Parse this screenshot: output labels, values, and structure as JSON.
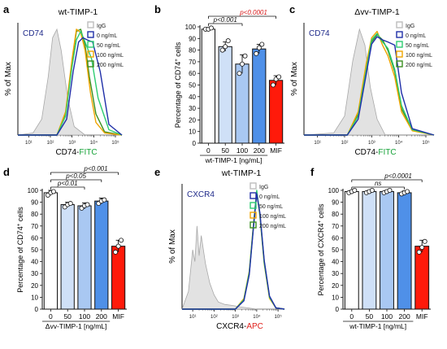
{
  "colors": {
    "igg": "#bdbdbd",
    "dose0": "#1f2fa8",
    "dose50": "#2ecc71",
    "dose100": "#f0a500",
    "dose200": "#3a8f1f",
    "bar0": "#ffffff",
    "bar50": "#cfe0f7",
    "bar100": "#a9c8f2",
    "bar200": "#4f90e8",
    "barMIF": "#ff1a0a",
    "panelLabel": "#1f2a8a",
    "fitc": "#18a33a",
    "apc": "#e0201b",
    "sigRed": "#d61a1a"
  },
  "panels": [
    {
      "letter": "a"
    },
    {
      "letter": "b"
    },
    {
      "letter": "c"
    },
    {
      "letter": "d"
    },
    {
      "letter": "e"
    },
    {
      "letter": "f"
    }
  ],
  "chart_data": [
    {
      "panel": "a",
      "type": "line",
      "title": "wt-TIMP-1",
      "marker_label": "CD74",
      "ylabel": "% of Max",
      "xlabel_main": "CD74-",
      "xlabel_color": "FITC",
      "ticks": [
        "10¹",
        "10²",
        "10³",
        "10⁴",
        "10⁵"
      ],
      "legend": [
        {
          "label": "IgG",
          "color": "#bdbdbd"
        },
        {
          "label": "0 ng/mL",
          "color": "#1f2fa8"
        },
        {
          "label": "50 ng/mL",
          "color": "#2ecc71"
        },
        {
          "label": "100 ng/mL",
          "color": "#f0a500"
        },
        {
          "label": "200 ng/mL",
          "color": "#3a8f1f"
        }
      ],
      "log_x_range": [
        0.5,
        5.3
      ],
      "series": [
        {
          "color": "#bdbdbd",
          "fill": true,
          "x": [
            0.5,
            1.2,
            1.6,
            1.9,
            2.1,
            2.3,
            2.5,
            2.8,
            3.1,
            3.6,
            5.3
          ],
          "y": [
            0,
            2,
            15,
            55,
            92,
            100,
            80,
            35,
            8,
            0,
            0
          ]
        },
        {
          "color": "#3a8f1f",
          "x": [
            0.5,
            2.3,
            2.7,
            3.0,
            3.2,
            3.4,
            3.6,
            3.8,
            4.1,
            4.5,
            5.3
          ],
          "y": [
            0,
            0,
            20,
            70,
            98,
            100,
            85,
            55,
            20,
            3,
            0
          ]
        },
        {
          "color": "#f0a500",
          "x": [
            0.5,
            2.3,
            2.7,
            3.0,
            3.2,
            3.4,
            3.6,
            3.85,
            4.1,
            4.5,
            5.3
          ],
          "y": [
            0,
            0,
            22,
            72,
            100,
            97,
            80,
            40,
            12,
            2,
            0
          ]
        },
        {
          "color": "#2ecc71",
          "x": [
            0.5,
            2.3,
            2.7,
            3.0,
            3.2,
            3.4,
            3.6,
            3.9,
            4.2,
            4.7,
            5.3
          ],
          "y": [
            0,
            0,
            18,
            65,
            90,
            98,
            88,
            72,
            35,
            5,
            0
          ]
        },
        {
          "color": "#1f2fa8",
          "x": [
            0.5,
            2.3,
            2.75,
            3.05,
            3.3,
            3.5,
            3.7,
            3.95,
            4.3,
            4.7,
            5.3
          ],
          "y": [
            0,
            0,
            15,
            60,
            88,
            92,
            90,
            88,
            60,
            10,
            0
          ]
        }
      ]
    },
    {
      "panel": "b",
      "type": "bar",
      "categories": [
        "0",
        "50",
        "100",
        "200",
        "MIF"
      ],
      "values": [
        98,
        83,
        68,
        81,
        54
      ],
      "errors": [
        1.5,
        4,
        8,
        4,
        4
      ],
      "points": [
        [
          98,
          98,
          99
        ],
        [
          80,
          83,
          88
        ],
        [
          60,
          68,
          75
        ],
        [
          77,
          82,
          85
        ],
        [
          50,
          55,
          57
        ]
      ],
      "ylabel_pre": "Percentage of CD74",
      "ylabel_sup": "+",
      "ylabel_post": " cells",
      "xlabel": "wt-TIMP-1 [ng/mL]",
      "ylim": [
        0,
        100
      ],
      "yticks": [
        0,
        10,
        20,
        30,
        40,
        50,
        60,
        70,
        80,
        90,
        100
      ],
      "significance": [
        {
          "from": 0,
          "to": 2,
          "label": "p<0.001",
          "color": "#111111"
        },
        {
          "from": 0,
          "to": 4,
          "label": "p<0.0001",
          "color": "#d61a1a"
        }
      ]
    },
    {
      "panel": "c",
      "type": "line",
      "title": "Δvv-TIMP-1",
      "marker_label": "CD74",
      "ylabel": "% of Max",
      "xlabel_main": "CD74-",
      "xlabel_color": "FITC",
      "ticks": [
        "10¹",
        "10²",
        "10³",
        "10⁴",
        "10⁵"
      ],
      "legend": [
        {
          "label": "IgG",
          "color": "#bdbdbd"
        },
        {
          "label": "0 ng/mL",
          "color": "#1f2fa8"
        },
        {
          "label": "50 ng/mL",
          "color": "#2ecc71"
        },
        {
          "label": "100 ng/mL",
          "color": "#f0a500"
        },
        {
          "label": "200 ng/mL",
          "color": "#3a8f1f"
        }
      ],
      "log_x_range": [
        0.5,
        5.3
      ],
      "series": [
        {
          "color": "#bdbdbd",
          "fill": true,
          "x": [
            0.5,
            1.6,
            2.0,
            2.3,
            2.55,
            2.75,
            2.95,
            3.2,
            3.5,
            5.3
          ],
          "y": [
            0,
            2,
            18,
            70,
            100,
            85,
            45,
            15,
            0,
            0
          ]
        },
        {
          "color": "#3a8f1f",
          "x": [
            0.5,
            2.1,
            2.5,
            2.8,
            3.0,
            3.2,
            3.4,
            3.6,
            3.85,
            4.1,
            4.5,
            5.3
          ],
          "y": [
            0,
            0,
            20,
            65,
            88,
            95,
            90,
            80,
            60,
            25,
            5,
            0
          ]
        },
        {
          "color": "#f0a500",
          "x": [
            0.5,
            2.1,
            2.5,
            2.8,
            3.0,
            3.2,
            3.4,
            3.6,
            3.85,
            4.1,
            4.5,
            5.3
          ],
          "y": [
            0,
            0,
            22,
            68,
            92,
            98,
            85,
            75,
            55,
            22,
            4,
            0
          ]
        },
        {
          "color": "#2ecc71",
          "x": [
            0.5,
            2.1,
            2.5,
            2.8,
            3.0,
            3.2,
            3.4,
            3.6,
            3.85,
            4.1,
            4.5,
            5.3
          ],
          "y": [
            0,
            0,
            18,
            62,
            90,
            96,
            88,
            82,
            62,
            28,
            5,
            0
          ]
        },
        {
          "color": "#1f2fa8",
          "x": [
            0.5,
            2.1,
            2.5,
            2.8,
            3.0,
            3.2,
            3.4,
            3.6,
            3.85,
            4.1,
            4.5,
            5.3
          ],
          "y": [
            0,
            0,
            15,
            58,
            86,
            93,
            90,
            88,
            85,
            40,
            6,
            0
          ]
        }
      ]
    },
    {
      "panel": "d",
      "type": "bar",
      "categories": [
        "0",
        "50",
        "100",
        "200",
        "MIF"
      ],
      "values": [
        98,
        88,
        87,
        91,
        53
      ],
      "errors": [
        2,
        2,
        2.5,
        2.5,
        5
      ],
      "points": [
        [
          96,
          98,
          99
        ],
        [
          86,
          88,
          89
        ],
        [
          85,
          87,
          88
        ],
        [
          89,
          91,
          92
        ],
        [
          48,
          53,
          58
        ]
      ],
      "ylabel_pre": "Percentage of CD74",
      "ylabel_sup": "+",
      "ylabel_post": " cells",
      "xlabel": "Δvv-TIMP-1 [ng/mL]",
      "ylim": [
        0,
        100
      ],
      "yticks": [
        0,
        10,
        20,
        30,
        40,
        50,
        60,
        70,
        80,
        90,
        100
      ],
      "significance": [
        {
          "from": 0,
          "to": 2,
          "label": "p<0.01",
          "color": "#111111"
        },
        {
          "from": 0,
          "to": 3,
          "label": "p<0.05",
          "color": "#111111"
        },
        {
          "from": 0,
          "to": 4,
          "label": "p<0.001",
          "color": "#111111"
        }
      ]
    },
    {
      "panel": "e",
      "type": "line",
      "title": "wt-TIMP-1",
      "marker_label": "CXCR4",
      "ylabel": "% of Max",
      "xlabel_main": "CXCR4-",
      "xlabel_color": "APC",
      "ticks": [
        "10¹",
        "10²",
        "10³",
        "10⁴",
        "10⁵"
      ],
      "legend": [
        {
          "label": "IgG",
          "color": "#bdbdbd"
        },
        {
          "label": "0 ng/mL",
          "color": "#1f2fa8"
        },
        {
          "label": "50 ng/mL",
          "color": "#2ecc71"
        },
        {
          "label": "100 ng/mL",
          "color": "#f0a500"
        },
        {
          "label": "200 ng/mL",
          "color": "#3a8f1f"
        }
      ],
      "log_x_range": [
        0.5,
        5.3
      ],
      "series": [
        {
          "color": "#bdbdbd",
          "fill": true,
          "x": [
            0.5,
            0.8,
            1.0,
            1.1,
            1.2,
            1.3,
            1.4,
            1.6,
            1.8,
            2.0,
            2.2,
            2.5,
            2.9,
            3.2,
            3.6,
            4.0,
            5.3
          ],
          "y": [
            0,
            15,
            50,
            40,
            70,
            45,
            62,
            38,
            22,
            12,
            6,
            4,
            3,
            2,
            1,
            0,
            0
          ]
        },
        {
          "color": "#3a8f1f",
          "x": [
            0.5,
            3.0,
            3.4,
            3.65,
            3.85,
            4.0,
            4.15,
            4.35,
            4.6,
            4.9,
            5.3
          ],
          "y": [
            0,
            0,
            8,
            30,
            70,
            98,
            80,
            40,
            10,
            1,
            0
          ]
        },
        {
          "color": "#f0a500",
          "x": [
            0.5,
            3.0,
            3.4,
            3.65,
            3.85,
            4.0,
            4.15,
            4.35,
            4.6,
            4.9,
            5.3
          ],
          "y": [
            0,
            0,
            9,
            32,
            72,
            99,
            78,
            38,
            9,
            1,
            0
          ]
        },
        {
          "color": "#2ecc71",
          "x": [
            0.5,
            3.0,
            3.4,
            3.65,
            3.85,
            4.0,
            4.15,
            4.35,
            4.6,
            4.9,
            5.3
          ],
          "y": [
            0,
            0,
            8,
            31,
            71,
            100,
            79,
            39,
            10,
            1,
            0
          ]
        },
        {
          "color": "#1f2fa8",
          "x": [
            0.5,
            3.0,
            3.4,
            3.65,
            3.85,
            4.0,
            4.15,
            4.35,
            4.6,
            4.9,
            5.3
          ],
          "y": [
            0,
            0,
            7,
            29,
            69,
            97,
            81,
            41,
            11,
            1,
            0
          ]
        }
      ]
    },
    {
      "panel": "f",
      "type": "bar",
      "categories": [
        "0",
        "50",
        "100",
        "200",
        "MIF"
      ],
      "values": [
        99,
        99,
        99,
        98,
        53
      ],
      "errors": [
        1,
        1,
        1,
        1.5,
        5
      ],
      "points": [
        [
          98,
          99,
          100
        ],
        [
          98,
          99,
          100
        ],
        [
          98,
          99,
          100
        ],
        [
          97,
          98,
          99
        ],
        [
          48,
          52,
          57
        ]
      ],
      "ylabel_pre": "Percentage of CXCR4",
      "ylabel_sup": "+",
      "ylabel_post": " cells",
      "xlabel": "wt-TIMP-1 [ng/mL]",
      "ylim": [
        0,
        100
      ],
      "yticks": [
        0,
        10,
        20,
        30,
        40,
        50,
        60,
        70,
        80,
        90,
        100
      ],
      "significance": [
        {
          "from": 0,
          "to": 3,
          "label": "ns",
          "color": "#111111",
          "italic": true
        },
        {
          "from": 0,
          "to": 4,
          "label": "p<0.0001",
          "color": "#111111"
        }
      ]
    }
  ]
}
